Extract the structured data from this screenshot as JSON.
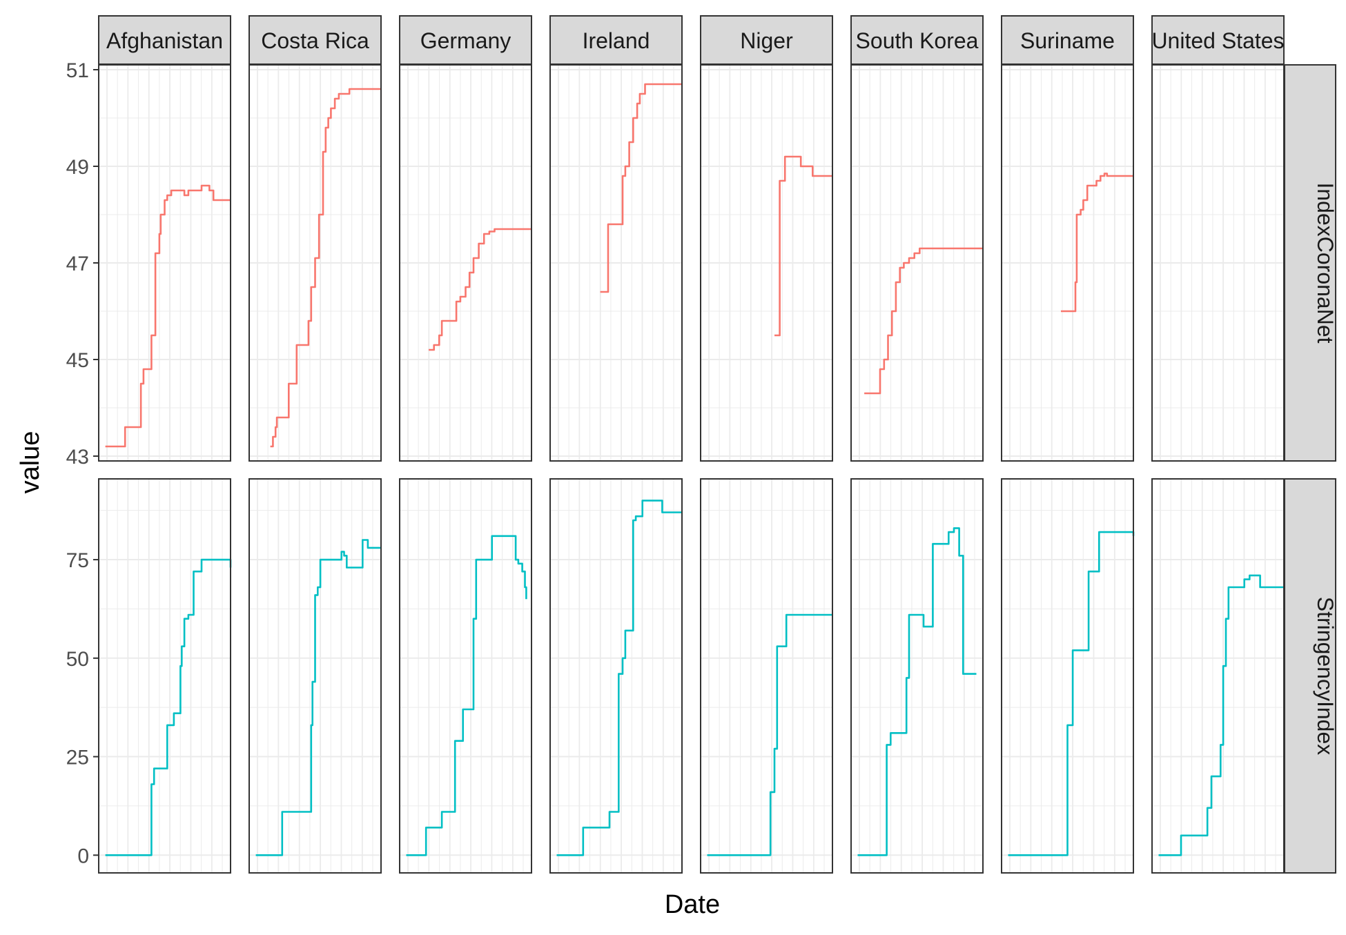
{
  "chart_data": {
    "type": "line",
    "xlabel": "Date",
    "ylabel": "value",
    "columns": [
      "Afghanistan",
      "Costa Rica",
      "Germany",
      "Ireland",
      "Niger",
      "South Korea",
      "Suriname",
      "United States"
    ],
    "rows": [
      {
        "name": "IndexCoronaNet",
        "ylim": [
          42.9,
          51.1
        ],
        "ticks": [
          "43",
          "45",
          "47",
          "49",
          "51"
        ],
        "color": "#F8766D",
        "series": [
          {
            "name": "Afghanistan",
            "x": [
              0.05,
              0.13,
              0.2,
              0.2,
              0.28,
              0.3,
              0.32,
              0.34,
              0.34,
              0.4,
              0.42,
              0.43,
              0.46,
              0.47,
              0.5,
              0.52,
              0.55,
              0.6,
              0.64,
              0.65,
              0.68,
              0.7,
              0.75,
              0.78,
              0.8,
              0.84,
              0.85,
              0.87,
              0.88,
              0.9,
              0.95,
              1.0
            ],
            "y": [
              43.2,
              43.2,
              43.2,
              43.6,
              43.6,
              43.6,
              44.5,
              44.5,
              44.8,
              45.5,
              45.5,
              47.2,
              47.6,
              48.0,
              48.3,
              48.4,
              48.5,
              48.5,
              48.5,
              48.4,
              48.5,
              48.5,
              48.5,
              48.6,
              48.6,
              48.5,
              48.5,
              48.3,
              48.3,
              48.3,
              48.3,
              48.3
            ]
          },
          {
            "name": "Costa Rica",
            "x": [
              0.16,
              0.18,
              0.2,
              0.21,
              0.24,
              0.3,
              0.33,
              0.36,
              0.4,
              0.45,
              0.47,
              0.5,
              0.53,
              0.56,
              0.58,
              0.6,
              0.62,
              0.65,
              0.68,
              0.72,
              0.76,
              0.8,
              0.86,
              0.9,
              0.95,
              1.0
            ],
            "y": [
              43.2,
              43.4,
              43.6,
              43.8,
              43.8,
              44.5,
              44.5,
              45.3,
              45.3,
              45.8,
              46.5,
              47.1,
              48.0,
              49.3,
              49.8,
              50.0,
              50.2,
              50.4,
              50.5,
              50.5,
              50.6,
              50.6,
              50.6,
              50.6,
              50.6,
              50.6
            ]
          },
          {
            "name": "Germany",
            "x": [
              0.22,
              0.26,
              0.3,
              0.32,
              0.35,
              0.4,
              0.43,
              0.46,
              0.5,
              0.53,
              0.56,
              0.6,
              0.64,
              0.68,
              0.72,
              0.76,
              0.8,
              0.85,
              0.9,
              0.95,
              1.0
            ],
            "y": [
              45.2,
              45.3,
              45.5,
              45.8,
              45.8,
              45.8,
              46.2,
              46.3,
              46.5,
              46.8,
              47.1,
              47.4,
              47.6,
              47.65,
              47.7,
              47.7,
              47.7,
              47.7,
              47.7,
              47.7,
              47.7
            ]
          },
          {
            "name": "Ireland",
            "x": [
              0.38,
              0.44,
              0.44,
              0.47,
              0.52,
              0.55,
              0.57,
              0.6,
              0.63,
              0.66,
              0.68,
              0.72,
              0.75,
              0.8,
              0.85,
              0.9,
              0.95,
              1.0
            ],
            "y": [
              46.4,
              46.4,
              47.8,
              47.8,
              47.8,
              48.8,
              49.0,
              49.5,
              50.0,
              50.3,
              50.5,
              50.7,
              50.7,
              50.7,
              50.7,
              50.7,
              50.7,
              50.7
            ]
          },
          {
            "name": "Niger",
            "x": [
              0.56,
              0.6,
              0.6,
              0.62,
              0.64,
              0.66,
              0.68,
              0.72,
              0.76,
              0.8,
              0.85,
              0.9,
              0.95,
              1.0
            ],
            "y": [
              45.5,
              45.5,
              48.7,
              48.7,
              49.2,
              49.2,
              49.2,
              49.2,
              49.0,
              49.0,
              48.8,
              48.8,
              48.8,
              48.8
            ]
          },
          {
            "name": "South Korea",
            "x": [
              0.1,
              0.2,
              0.22,
              0.25,
              0.28,
              0.31,
              0.34,
              0.37,
              0.4,
              0.44,
              0.48,
              0.52,
              0.56,
              0.6,
              0.65,
              0.7,
              0.75,
              0.8,
              0.85,
              0.9,
              0.95,
              1.0
            ],
            "y": [
              44.3,
              44.3,
              44.8,
              45.0,
              45.5,
              46.0,
              46.6,
              46.9,
              47.0,
              47.1,
              47.2,
              47.3,
              47.3,
              47.3,
              47.3,
              47.3,
              47.3,
              47.3,
              47.3,
              47.3,
              47.3,
              47.3
            ]
          },
          {
            "name": "Suriname",
            "x": [
              0.45,
              0.54,
              0.56,
              0.57,
              0.6,
              0.62,
              0.65,
              0.68,
              0.72,
              0.75,
              0.78,
              0.8,
              0.84,
              0.88,
              0.92,
              0.96,
              1.0
            ],
            "y": [
              46.0,
              46.0,
              46.6,
              48.0,
              48.1,
              48.3,
              48.6,
              48.6,
              48.7,
              48.8,
              48.85,
              48.8,
              48.8,
              48.8,
              48.8,
              48.8,
              48.8
            ]
          },
          {
            "name": "United States",
            "x": [],
            "y": []
          }
        ]
      },
      {
        "name": "StringencyIndex",
        "ylim": [
          -4.5,
          95.5
        ],
        "ticks": [
          "0",
          "25",
          "50",
          "75"
        ],
        "color": "#00BFC4",
        "series": [
          {
            "name": "Afghanistan",
            "x": [
              0.05,
              0.2,
              0.4,
              0.4,
              0.42,
              0.46,
              0.52,
              0.54,
              0.57,
              0.6,
              0.62,
              0.63,
              0.65,
              0.68,
              0.7,
              0.72,
              0.75,
              0.78,
              0.82,
              0.85,
              0.88,
              0.92,
              0.95,
              1.0
            ],
            "y": [
              0,
              0,
              0,
              18,
              22,
              22,
              33,
              33,
              36,
              36,
              48,
              53,
              60,
              61,
              61,
              72,
              72,
              75,
              75,
              75,
              75,
              75,
              75,
              73
            ]
          },
          {
            "name": "Costa Rica",
            "x": [
              0.05,
              0.2,
              0.25,
              0.3,
              0.35,
              0.45,
              0.47,
              0.48,
              0.5,
              0.52,
              0.54,
              0.56,
              0.6,
              0.65,
              0.7,
              0.72,
              0.74,
              0.76,
              0.8,
              0.84,
              0.86,
              0.88,
              0.9,
              0.95,
              1.0
            ],
            "y": [
              0,
              0,
              11,
              11,
              11,
              11,
              33,
              44,
              66,
              68,
              75,
              75,
              75,
              75,
              77,
              76,
              73,
              73,
              73,
              73,
              80,
              80,
              78,
              78,
              78
            ]
          },
          {
            "name": "Germany",
            "x": [
              0.05,
              0.18,
              0.2,
              0.25,
              0.32,
              0.38,
              0.42,
              0.45,
              0.48,
              0.52,
              0.56,
              0.58,
              0.6,
              0.62,
              0.65,
              0.7,
              0.75,
              0.8,
              0.85,
              0.88,
              0.9,
              0.93,
              0.95,
              0.96
            ],
            "y": [
              0,
              0,
              7,
              7,
              11,
              11,
              29,
              29,
              37,
              37,
              60,
              75,
              75,
              75,
              75,
              81,
              81,
              81,
              81,
              75,
              74,
              72,
              68,
              65
            ]
          },
          {
            "name": "Ireland",
            "x": [
              0.05,
              0.25,
              0.25,
              0.3,
              0.4,
              0.45,
              0.5,
              0.52,
              0.55,
              0.57,
              0.6,
              0.63,
              0.65,
              0.7,
              0.75,
              0.78,
              0.82,
              0.85,
              0.88,
              0.9,
              0.95,
              1.0
            ],
            "y": [
              0,
              0,
              7,
              7,
              7,
              11,
              11,
              46,
              50,
              57,
              57,
              85,
              86,
              90,
              90,
              90,
              90,
              87,
              87,
              87,
              87,
              87
            ]
          },
          {
            "name": "Niger",
            "x": [
              0.05,
              0.53,
              0.53,
              0.56,
              0.58,
              0.62,
              0.65,
              0.7,
              0.75,
              0.8,
              0.85,
              0.9,
              0.95,
              1.0
            ],
            "y": [
              0,
              0,
              16,
              27,
              53,
              53,
              61,
              61,
              61,
              61,
              61,
              61,
              61,
              61
            ]
          },
          {
            "name": "South Korea",
            "x": [
              0.05,
              0.25,
              0.27,
              0.3,
              0.34,
              0.4,
              0.42,
              0.44,
              0.48,
              0.52,
              0.55,
              0.58,
              0.62,
              0.66,
              0.7,
              0.74,
              0.78,
              0.8,
              0.82,
              0.85,
              0.9,
              0.95
            ],
            "y": [
              0,
              0,
              28,
              31,
              31,
              31,
              45,
              61,
              61,
              61,
              58,
              58,
              79,
              79,
              79,
              82,
              83,
              83,
              76,
              46,
              46,
              46
            ]
          },
          {
            "name": "Suriname",
            "x": [
              0.05,
              0.5,
              0.5,
              0.54,
              0.58,
              0.62,
              0.66,
              0.7,
              0.74,
              0.78,
              0.82,
              0.86,
              0.9,
              0.95,
              1.0
            ],
            "y": [
              0,
              0,
              33,
              52,
              52,
              52,
              72,
              72,
              82,
              82,
              82,
              82,
              82,
              82,
              81
            ]
          },
          {
            "name": "United States",
            "x": [
              0.05,
              0.22,
              0.22,
              0.26,
              0.3,
              0.38,
              0.42,
              0.45,
              0.48,
              0.52,
              0.54,
              0.56,
              0.58,
              0.6,
              0.62,
              0.66,
              0.7,
              0.74,
              0.78,
              0.82,
              0.85,
              0.88,
              0.92,
              0.96,
              1.0
            ],
            "y": [
              0,
              0,
              5,
              5,
              5,
              5,
              12,
              20,
              20,
              28,
              48,
              60,
              68,
              68,
              68,
              68,
              70,
              71,
              71,
              68,
              68,
              68,
              68,
              68,
              68
            ]
          }
        ]
      }
    ]
  }
}
